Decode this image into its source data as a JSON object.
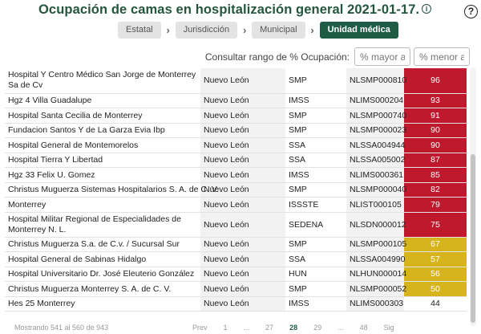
{
  "header": {
    "title": "Ocupación de camas en hospitalización general 2021-01-17.",
    "info_icon": "i",
    "help_icon": "?"
  },
  "breadcrumb": [
    {
      "label": "Estatal",
      "active": false
    },
    {
      "label": "Jurisdicción",
      "active": false
    },
    {
      "label": "Municipal",
      "active": false
    },
    {
      "label": "Unidad médica",
      "active": true
    }
  ],
  "filter": {
    "label": "Consultar rango de % Ocupación:",
    "min_placeholder": "% mayor a",
    "max_placeholder": "% menor a"
  },
  "colors": {
    "red": "#c0182d",
    "yellow": "#d8b41c",
    "accent": "#1f5c45"
  },
  "rows": [
    {
      "name": "Hospital Y Centro Médico San Jorge de Monterrey Sa de Cv",
      "state": "Nuevo León",
      "inst": "SMP",
      "code": "NLSMP000810",
      "pct": "96",
      "level": "red",
      "tall": true
    },
    {
      "name": "Hgz 4 Villa Guadalupe",
      "state": "Nuevo León",
      "inst": "IMSS",
      "code": "NLIMS000204",
      "pct": "93",
      "level": "red"
    },
    {
      "name": "Hospital Santa Cecilia de Monterrey",
      "state": "Nuevo León",
      "inst": "SMP",
      "code": "NLSMP000740",
      "pct": "91",
      "level": "red"
    },
    {
      "name": "Fundacion Santos Y de La Garza Evia Ibp",
      "state": "Nuevo León",
      "inst": "SMP",
      "code": "NLSMP000023",
      "pct": "90",
      "level": "red"
    },
    {
      "name": "Hospital General de Montemorelos",
      "state": "Nuevo León",
      "inst": "SSA",
      "code": "NLSSA004944",
      "pct": "90",
      "level": "red"
    },
    {
      "name": "Hospital Tierra Y Libertad",
      "state": "Nuevo León",
      "inst": "SSA",
      "code": "NLSSA005002",
      "pct": "87",
      "level": "red"
    },
    {
      "name": "Hgz 33 Felix U. Gomez",
      "state": "Nuevo León",
      "inst": "IMSS",
      "code": "NLIMS000361",
      "pct": "85",
      "level": "red"
    },
    {
      "name": "Christus Muguerza Sistemas Hospitalarios S. A. de C. V.",
      "state": "Nuevo León",
      "inst": "SMP",
      "code": "NLSMP000040",
      "pct": "82",
      "level": "red"
    },
    {
      "name": "Monterrey",
      "state": "Nuevo León",
      "inst": "ISSSTE",
      "code": "NLIST000105",
      "pct": "79",
      "level": "red"
    },
    {
      "name": "Hospital Militar Regional de Especialidades de Monterrey N. L.",
      "state": "Nuevo León",
      "inst": "SEDENA",
      "code": "NLSDN000012",
      "pct": "75",
      "level": "red",
      "tall": true
    },
    {
      "name": "Christus Muguerza S.a. de C.v. / Sucursal Sur",
      "state": "Nuevo León",
      "inst": "SMP",
      "code": "NLSMP000105",
      "pct": "67",
      "level": "yellow"
    },
    {
      "name": "Hospital General de Sabinas Hidalgo",
      "state": "Nuevo León",
      "inst": "SSA",
      "code": "NLSSA004990",
      "pct": "57",
      "level": "yellow"
    },
    {
      "name": "Hospital Universitario Dr. José Eleuterio González",
      "state": "Nuevo León",
      "inst": "HUN",
      "code": "NLHUN000014",
      "pct": "56",
      "level": "yellow"
    },
    {
      "name": "Christus Muguerza Monterrey S. A. de C. V.",
      "state": "Nuevo León",
      "inst": "SMP",
      "code": "NLSMP000052",
      "pct": "50",
      "level": "yellow"
    },
    {
      "name": "Hes 25 Monterrey",
      "state": "Nuevo León",
      "inst": "IMSS",
      "code": "NLIMS000303",
      "pct": "44",
      "level": "none"
    }
  ],
  "footer": {
    "info": "Mostrando 541 al 560 de 943",
    "prev": "Prev",
    "pages": [
      "1",
      "...",
      "27",
      "28",
      "29",
      "...",
      "48"
    ],
    "current": "28",
    "next": "Sig"
  }
}
